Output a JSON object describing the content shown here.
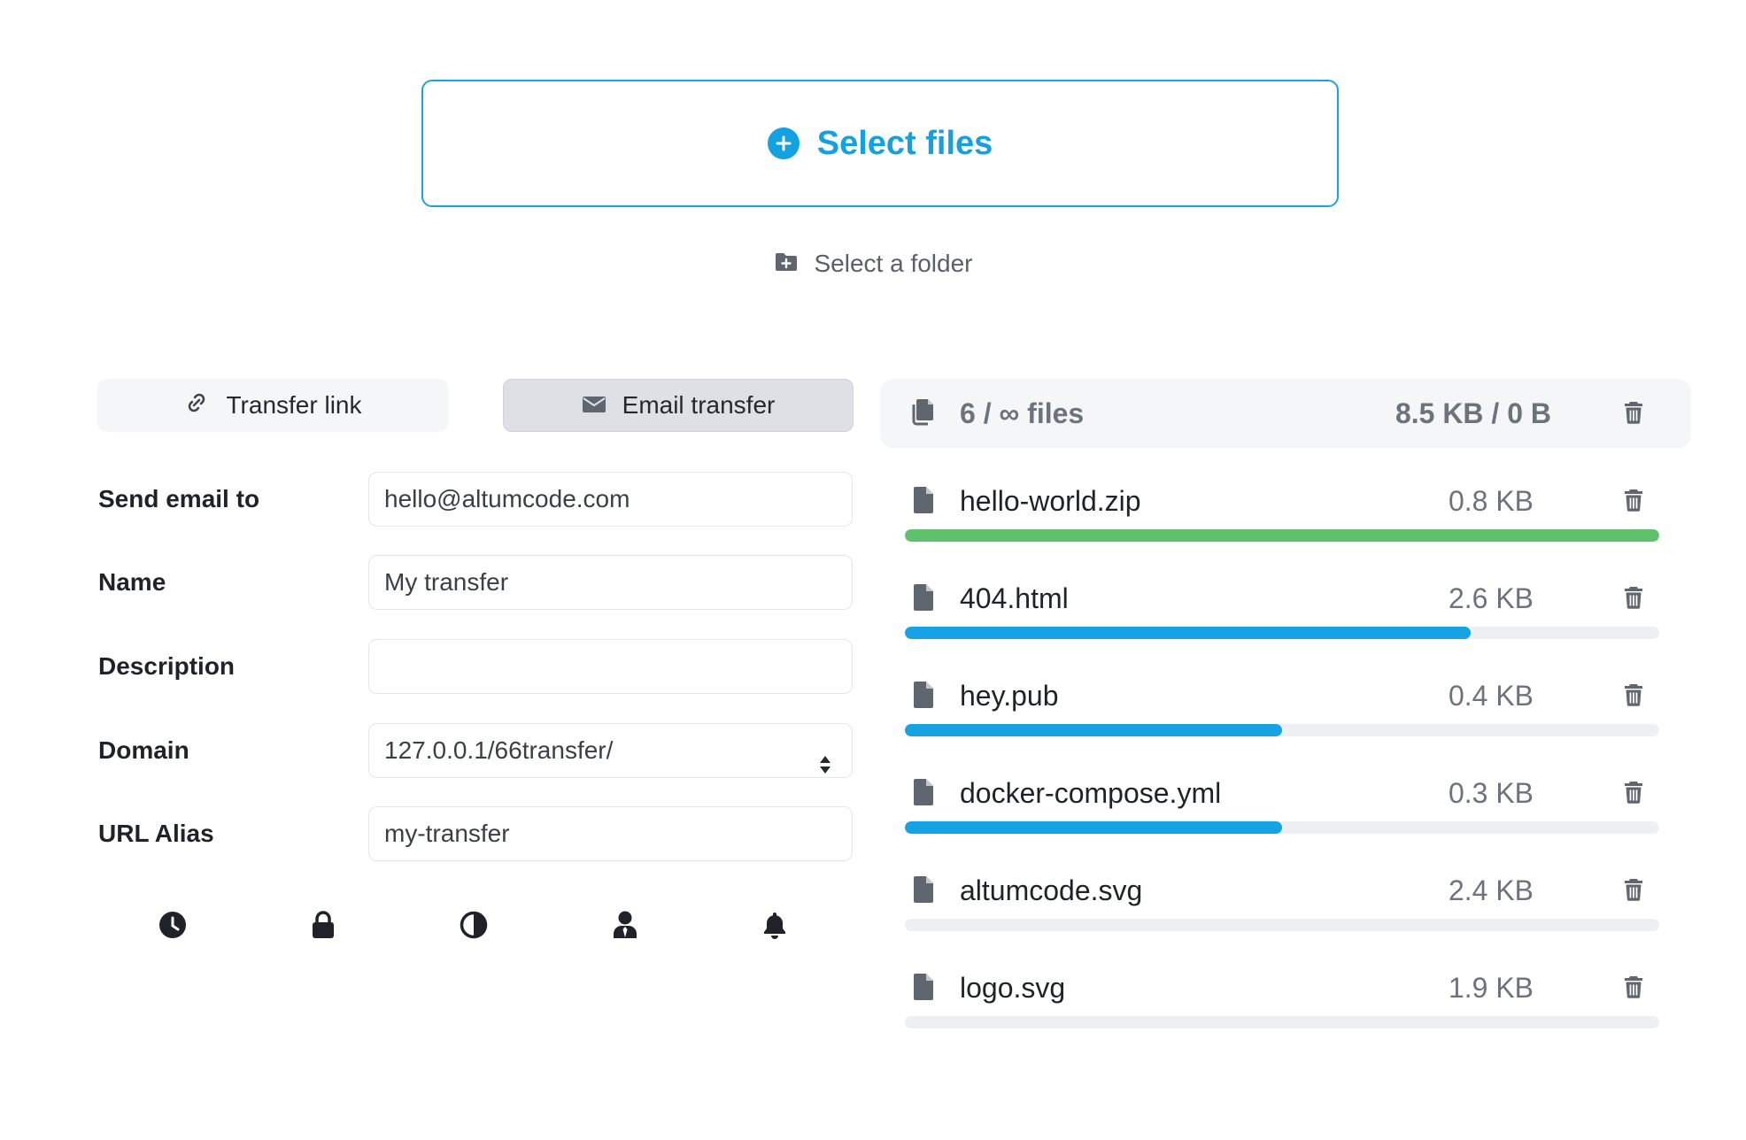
{
  "upload": {
    "select_files_label": "Select files",
    "select_folder_label": "Select a folder"
  },
  "tabs": [
    {
      "label": "Transfer link",
      "icon": "link-icon",
      "active": false
    },
    {
      "label": "Email transfer",
      "icon": "envelope-icon",
      "active": true
    }
  ],
  "form": {
    "send_email_label": "Send email to",
    "send_email_value": "hello@altumcode.com",
    "name_label": "Name",
    "name_value": "My transfer",
    "description_label": "Description",
    "description_value": "",
    "domain_label": "Domain",
    "domain_value": "127.0.0.1/66transfer/",
    "url_alias_label": "URL Alias",
    "url_alias_value": "my-transfer"
  },
  "options_icons": [
    "clock-icon",
    "lock-icon",
    "contrast-icon",
    "user-tie-icon",
    "bell-icon"
  ],
  "files_summary": {
    "count_text": "6 / ∞ files",
    "size_text": "8.5 KB / 0 B"
  },
  "files": [
    {
      "name": "hello-world.zip",
      "size": "0.8 KB",
      "progress": 1.0,
      "color": "#5fc16b"
    },
    {
      "name": "404.html",
      "size": "2.6 KB",
      "progress": 0.75,
      "color": "#16a3e3"
    },
    {
      "name": "hey.pub",
      "size": "0.4 KB",
      "progress": 0.5,
      "color": "#16a3e3"
    },
    {
      "name": "docker-compose.yml",
      "size": "0.3 KB",
      "progress": 0.5,
      "color": "#16a3e3"
    },
    {
      "name": "altumcode.svg",
      "size": "2.4 KB",
      "progress": 0.0,
      "color": "#16a3e3"
    },
    {
      "name": "logo.svg",
      "size": "1.9 KB",
      "progress": 0.0,
      "color": "#16a3e3"
    }
  ],
  "colors": {
    "accent": "#14a1e0",
    "success": "#5fc16b",
    "muted": "#6d737c"
  }
}
